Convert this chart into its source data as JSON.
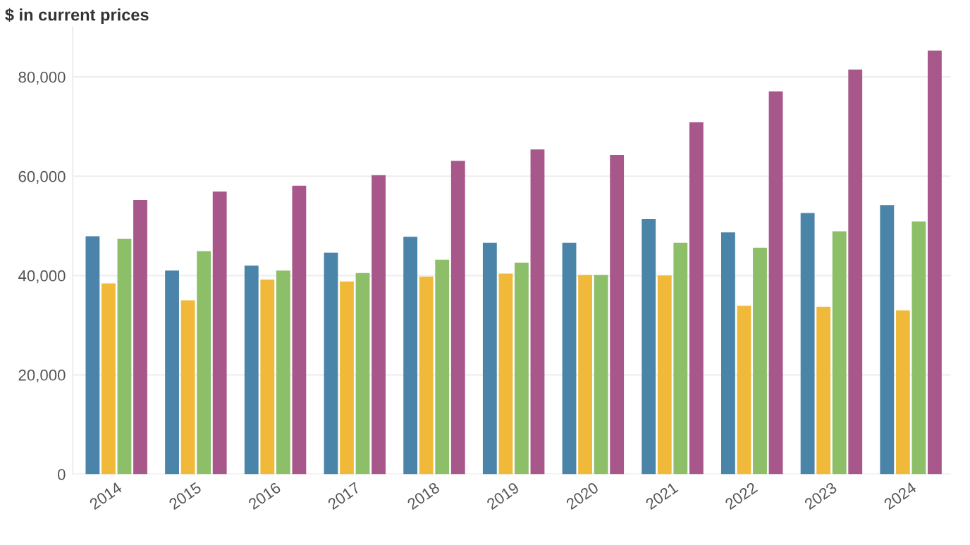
{
  "chart_data": {
    "type": "bar",
    "ylabel": "$ in current prices",
    "categories": [
      "2014",
      "2015",
      "2016",
      "2017",
      "2018",
      "2019",
      "2020",
      "2021",
      "2022",
      "2023",
      "2024"
    ],
    "series": [
      {
        "color": "#4a84a8",
        "values": [
          47900,
          41000,
          42000,
          44600,
          47800,
          46600,
          46600,
          51400,
          48700,
          52600,
          54200
        ]
      },
      {
        "color": "#f0b93a",
        "values": [
          38400,
          35000,
          39200,
          38800,
          39800,
          40400,
          40100,
          40000,
          33900,
          33700,
          33000
        ]
      },
      {
        "color": "#8cbf68",
        "values": [
          47400,
          44900,
          41000,
          40500,
          43200,
          42600,
          40100,
          46600,
          45600,
          48900,
          50900
        ]
      },
      {
        "color": "#a8578a",
        "values": [
          55200,
          56900,
          58100,
          60200,
          63100,
          65400,
          64300,
          70900,
          77100,
          81500,
          85300
        ]
      }
    ],
    "ylim": [
      0,
      90000
    ],
    "yticks": [
      0,
      {
        "value": 20000,
        "label": "20,000"
      },
      {
        "value": 40000,
        "label": "40,000"
      },
      {
        "value": 60000,
        "label": "60,000"
      },
      {
        "value": 80000,
        "label": "80,000"
      }
    ],
    "grid": "y"
  }
}
